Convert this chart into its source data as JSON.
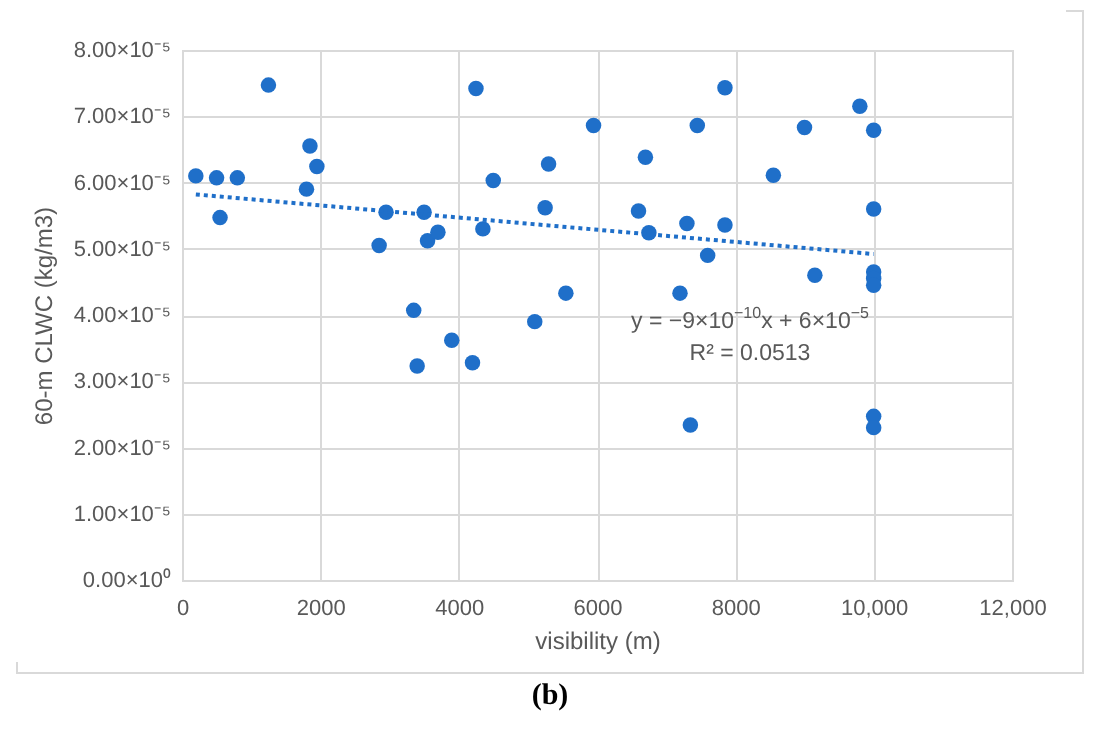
{
  "chart_data": {
    "type": "scatter",
    "xlabel": "visibility (m)",
    "ylabel": "60-m CLWC (kg/m3)",
    "xlim": [
      0,
      12000
    ],
    "xticks": [
      0,
      2000,
      4000,
      6000,
      8000,
      {
        "value": 10000,
        "label": "10,000"
      },
      {
        "value": 12000,
        "label": "12,000"
      }
    ],
    "ylim": [
      0,
      8e-05
    ],
    "yticks": [
      {
        "value": 0,
        "label": "0.00×10⁰"
      },
      {
        "value": 1e-05,
        "label": "1.00×10⁻⁵"
      },
      {
        "value": 2e-05,
        "label": "2.00×10⁻⁵"
      },
      {
        "value": 3e-05,
        "label": "3.00×10⁻⁵"
      },
      {
        "value": 4e-05,
        "label": "4.00×10⁻⁵"
      },
      {
        "value": 5e-05,
        "label": "5.00×10⁻⁵"
      },
      {
        "value": 6e-05,
        "label": "6.00×10⁻⁵"
      },
      {
        "value": 7e-05,
        "label": "7.00×10⁻⁵"
      },
      {
        "value": 8e-05,
        "label": "8.00×10⁻⁵"
      }
    ],
    "grid": true,
    "marker": "circle",
    "series": [
      {
        "color": "#1f6fc9",
        "x": [
          200,
          500,
          550,
          800,
          1250,
          1800,
          1850,
          1950,
          2850,
          2950,
          3350,
          3400,
          3500,
          3550,
          3700,
          3900,
          4200,
          4250,
          4350,
          4500,
          5100,
          5250,
          5300,
          5550,
          5950,
          6600,
          6700,
          6750,
          7200,
          7300,
          7350,
          7450,
          7600,
          7850,
          7850,
          8550,
          9000,
          9150,
          9800,
          10000,
          10000,
          10000,
          10000,
          10000,
          10000,
          10000
        ],
        "values": [
          6.1e-05,
          6.07e-05,
          5.47e-05,
          6.07e-05,
          7.47e-05,
          5.9e-05,
          6.55e-05,
          6.24e-05,
          5.05e-05,
          5.55e-05,
          4.07e-05,
          3.23e-05,
          5.55e-05,
          5.12e-05,
          5.25e-05,
          3.62e-05,
          3.28e-05,
          7.42e-05,
          5.3e-05,
          6.03e-05,
          3.9e-05,
          5.62e-05,
          6.28e-05,
          4.33e-05,
          6.86e-05,
          5.57e-05,
          6.38e-05,
          5.24e-05,
          4.33e-05,
          5.38e-05,
          2.34e-05,
          6.86e-05,
          4.9e-05,
          5.36e-05,
          7.43e-05,
          6.11e-05,
          6.83e-05,
          4.6e-05,
          7.15e-05,
          6.79e-05,
          5.6e-05,
          4.65e-05,
          4.55e-05,
          4.45e-05,
          2.47e-05,
          2.3e-05
        ]
      },
      {
        "type": "line",
        "marker": "none",
        "color": "#1f6fc9",
        "line_style": "dotted",
        "x": [
          200,
          10000
        ],
        "values": [
          5.82e-05,
          4.92e-05
        ]
      }
    ],
    "annotations": [
      "y = −9×10$^{−10}$x + 6×10$^{−5}$",
      "R² = 0.0513",
      "(b)"
    ]
  }
}
